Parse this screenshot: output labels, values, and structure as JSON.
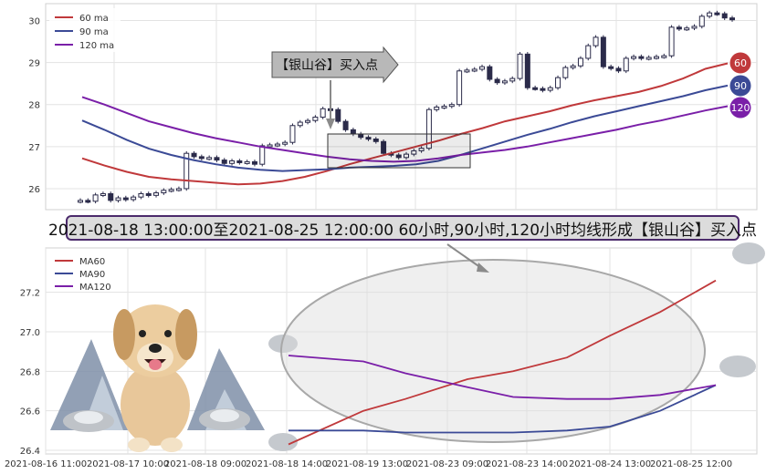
{
  "chart_data": [
    {
      "type": "candlestick+line",
      "ylim": [
        25.5,
        30.4
      ],
      "yticks": [
        "26",
        "27",
        "28",
        "29",
        "30"
      ],
      "grid": true,
      "legend_position": "top-left",
      "series": [
        {
          "name": "60 ma",
          "color": "#c0393b"
        },
        {
          "name": "90 ma",
          "color": "#3b4a96"
        },
        {
          "name": "120 ma",
          "color": "#7a1fa8"
        }
      ],
      "end_labels": [
        "60",
        "90",
        "120"
      ],
      "callout": "【银山谷】买入点",
      "candles": [
        25.72,
        25.7,
        25.85,
        25.88,
        25.72,
        25.78,
        25.74,
        25.8,
        25.88,
        25.84,
        25.9,
        25.96,
        25.98,
        26.0,
        26.84,
        26.76,
        26.72,
        26.74,
        26.68,
        26.6,
        26.66,
        26.62,
        26.64,
        26.58,
        27.02,
        27.04,
        27.06,
        27.1,
        27.5,
        27.58,
        27.62,
        27.7,
        27.9,
        27.88,
        27.6,
        27.4,
        27.3,
        27.22,
        27.18,
        27.12,
        26.84,
        26.8,
        26.74,
        26.82,
        26.9,
        26.96,
        27.88,
        27.94,
        27.96,
        28.0,
        28.8,
        28.82,
        28.84,
        28.9,
        28.6,
        28.52,
        28.56,
        28.62,
        29.2,
        28.4,
        28.38,
        28.34,
        28.4,
        28.64,
        28.88,
        28.92,
        29.1,
        29.4,
        29.6,
        28.9,
        28.86,
        28.8,
        29.1,
        29.14,
        29.1,
        29.12,
        29.14,
        29.16,
        29.84,
        29.8,
        29.82,
        29.86,
        30.1,
        30.18,
        30.16,
        30.06,
        30.02
      ],
      "ma60": [
        26.72,
        26.55,
        26.4,
        26.28,
        26.22,
        26.18,
        26.14,
        26.1,
        26.12,
        26.18,
        26.28,
        26.42,
        26.58,
        26.72,
        26.86,
        27.0,
        27.14,
        27.3,
        27.44,
        27.6,
        27.72,
        27.84,
        27.98,
        28.1,
        28.2,
        28.3,
        28.44,
        28.62,
        28.85,
        28.98
      ],
      "ma90": [
        27.62,
        27.4,
        27.16,
        26.95,
        26.8,
        26.68,
        26.58,
        26.5,
        26.45,
        26.42,
        26.44,
        26.46,
        26.5,
        26.52,
        26.54,
        26.58,
        26.66,
        26.8,
        26.96,
        27.12,
        27.28,
        27.42,
        27.58,
        27.72,
        27.84,
        27.96,
        28.08,
        28.2,
        28.34,
        28.45
      ],
      "ma120": [
        28.18,
        28.0,
        27.8,
        27.6,
        27.46,
        27.32,
        27.2,
        27.1,
        27.0,
        26.92,
        26.84,
        26.76,
        26.7,
        26.66,
        26.64,
        26.66,
        26.72,
        26.8,
        26.86,
        26.92,
        27.0,
        27.1,
        27.2,
        27.3,
        27.4,
        27.52,
        27.62,
        27.74,
        27.86,
        27.96
      ]
    },
    {
      "type": "line",
      "title": "2021-08-18 13:00:00至2021-08-25 12:00:00 60小时,90小时,120小时均线形成【银山谷】买入点",
      "x": [
        "2021-08-16 11:00",
        "2021-08-17 10:00",
        "2021-08-18 09:00",
        "2021-08-18 14:00",
        "2021-08-19 13:00",
        "2021-08-23 09:00",
        "2021-08-23 14:00",
        "2021-08-24 13:00",
        "2021-08-25 12:00"
      ],
      "ylim": [
        26.4,
        27.3
      ],
      "yticks": [
        "26.4",
        "26.6",
        "26.8",
        "27.0",
        "27.2"
      ],
      "grid": true,
      "legend_position": "top-left",
      "series": [
        {
          "name": "MA60",
          "color": "#c0393b",
          "values": [
            26.43,
            26.6,
            26.66,
            26.76,
            26.8,
            26.87,
            26.98,
            27.1,
            27.26
          ]
        },
        {
          "name": "MA90",
          "color": "#3b4a96",
          "values": [
            26.5,
            26.5,
            26.49,
            26.49,
            26.49,
            26.5,
            26.52,
            26.6,
            26.73
          ]
        },
        {
          "name": "MA120",
          "color": "#7a1fa8",
          "values": [
            26.88,
            26.85,
            26.79,
            26.72,
            26.67,
            26.66,
            26.66,
            26.68,
            26.73
          ]
        }
      ]
    }
  ]
}
